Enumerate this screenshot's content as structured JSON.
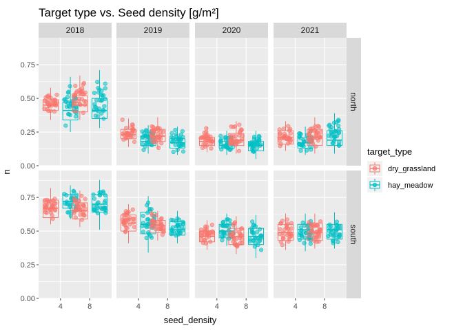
{
  "chart_data": {
    "type": "boxplot-jitter-faceted",
    "title": "Target type vs. Seed density [g/m²]",
    "xlabel": "seed_density",
    "ylabel": "n",
    "x_categories": [
      "4",
      "8"
    ],
    "ylim": [
      0,
      0.95
    ],
    "y_ticks": [
      "0.00",
      "0.25",
      "0.50",
      "0.75"
    ],
    "y_tick_values": [
      0,
      0.25,
      0.5,
      0.75
    ],
    "facet_columns": [
      "2018",
      "2019",
      "2020",
      "2021"
    ],
    "facet_rows": [
      "north",
      "south"
    ],
    "legend": {
      "title": "target_type",
      "position": "right",
      "entries": [
        {
          "name": "dry_grassland",
          "color": "#F8766D"
        },
        {
          "name": "hay_meadow",
          "color": "#00BFC4"
        }
      ]
    },
    "series_colors": {
      "dry_grassland": "#F8766D",
      "hay_meadow": "#00BFC4"
    },
    "boxes": [
      {
        "row": "north",
        "col": "2018",
        "x": "4",
        "series": "dry_grassland",
        "min": 0.34,
        "q1": 0.41,
        "median": 0.45,
        "q3": 0.49,
        "max": 0.58
      },
      {
        "row": "north",
        "col": "2018",
        "x": "4",
        "series": "hay_meadow",
        "min": 0.25,
        "q1": 0.34,
        "median": 0.41,
        "q3": 0.47,
        "max": 0.66
      },
      {
        "row": "north",
        "col": "2018",
        "x": "8",
        "series": "dry_grassland",
        "min": 0.34,
        "q1": 0.4,
        "median": 0.45,
        "q3": 0.52,
        "max": 0.67
      },
      {
        "row": "north",
        "col": "2018",
        "x": "8",
        "series": "hay_meadow",
        "min": 0.28,
        "q1": 0.35,
        "median": 0.41,
        "q3": 0.5,
        "max": 0.71
      },
      {
        "row": "north",
        "col": "2019",
        "x": "4",
        "series": "dry_grassland",
        "min": 0.14,
        "q1": 0.2,
        "median": 0.23,
        "q3": 0.27,
        "max": 0.35
      },
      {
        "row": "north",
        "col": "2019",
        "x": "4",
        "series": "hay_meadow",
        "min": 0.09,
        "q1": 0.15,
        "median": 0.18,
        "q3": 0.22,
        "max": 0.3
      },
      {
        "row": "north",
        "col": "2019",
        "x": "8",
        "series": "dry_grassland",
        "min": 0.12,
        "q1": 0.18,
        "median": 0.22,
        "q3": 0.27,
        "max": 0.36
      },
      {
        "row": "north",
        "col": "2019",
        "x": "8",
        "series": "hay_meadow",
        "min": 0.08,
        "q1": 0.13,
        "median": 0.17,
        "q3": 0.2,
        "max": 0.29
      },
      {
        "row": "north",
        "col": "2020",
        "x": "4",
        "series": "dry_grassland",
        "min": 0.1,
        "q1": 0.15,
        "median": 0.18,
        "q3": 0.21,
        "max": 0.29
      },
      {
        "row": "north",
        "col": "2020",
        "x": "4",
        "series": "hay_meadow",
        "min": 0.08,
        "q1": 0.13,
        "median": 0.15,
        "q3": 0.18,
        "max": 0.26
      },
      {
        "row": "north",
        "col": "2020",
        "x": "8",
        "series": "dry_grassland",
        "min": 0.09,
        "q1": 0.15,
        "median": 0.19,
        "q3": 0.24,
        "max": 0.33
      },
      {
        "row": "north",
        "col": "2020",
        "x": "8",
        "series": "hay_meadow",
        "min": 0.05,
        "q1": 0.11,
        "median": 0.15,
        "q3": 0.18,
        "max": 0.26
      },
      {
        "row": "north",
        "col": "2021",
        "x": "4",
        "series": "dry_grassland",
        "min": 0.11,
        "q1": 0.16,
        "median": 0.21,
        "q3": 0.26,
        "max": 0.33
      },
      {
        "row": "north",
        "col": "2021",
        "x": "4",
        "series": "hay_meadow",
        "min": 0.08,
        "q1": 0.13,
        "median": 0.17,
        "q3": 0.21,
        "max": 0.29
      },
      {
        "row": "north",
        "col": "2021",
        "x": "8",
        "series": "dry_grassland",
        "min": 0.09,
        "q1": 0.15,
        "median": 0.21,
        "q3": 0.27,
        "max": 0.36
      },
      {
        "row": "north",
        "col": "2021",
        "x": "8",
        "series": "hay_meadow",
        "min": 0.09,
        "q1": 0.15,
        "median": 0.19,
        "q3": 0.26,
        "max": 0.39
      },
      {
        "row": "south",
        "col": "2018",
        "x": "4",
        "series": "dry_grassland",
        "min": 0.55,
        "q1": 0.6,
        "median": 0.67,
        "q3": 0.73,
        "max": 0.82
      },
      {
        "row": "south",
        "col": "2018",
        "x": "4",
        "series": "hay_meadow",
        "min": 0.59,
        "q1": 0.67,
        "median": 0.72,
        "q3": 0.77,
        "max": 0.84
      },
      {
        "row": "south",
        "col": "2018",
        "x": "8",
        "series": "dry_grassland",
        "min": 0.53,
        "q1": 0.59,
        "median": 0.65,
        "q3": 0.71,
        "max": 0.8
      },
      {
        "row": "south",
        "col": "2018",
        "x": "8",
        "series": "hay_meadow",
        "min": 0.51,
        "q1": 0.64,
        "median": 0.7,
        "q3": 0.77,
        "max": 0.88
      },
      {
        "row": "south",
        "col": "2019",
        "x": "4",
        "series": "dry_grassland",
        "min": 0.41,
        "q1": 0.5,
        "median": 0.56,
        "q3": 0.62,
        "max": 0.7
      },
      {
        "row": "south",
        "col": "2019",
        "x": "4",
        "series": "hay_meadow",
        "min": 0.34,
        "q1": 0.48,
        "median": 0.55,
        "q3": 0.64,
        "max": 0.76
      },
      {
        "row": "south",
        "col": "2019",
        "x": "8",
        "series": "dry_grassland",
        "min": 0.43,
        "q1": 0.49,
        "median": 0.54,
        "q3": 0.58,
        "max": 0.65
      },
      {
        "row": "south",
        "col": "2019",
        "x": "8",
        "series": "hay_meadow",
        "min": 0.41,
        "q1": 0.47,
        "median": 0.51,
        "q3": 0.57,
        "max": 0.65
      },
      {
        "row": "south",
        "col": "2020",
        "x": "4",
        "series": "dry_grassland",
        "min": 0.36,
        "q1": 0.42,
        "median": 0.46,
        "q3": 0.5,
        "max": 0.58
      },
      {
        "row": "south",
        "col": "2020",
        "x": "4",
        "series": "hay_meadow",
        "min": 0.39,
        "q1": 0.45,
        "median": 0.5,
        "q3": 0.55,
        "max": 0.63
      },
      {
        "row": "south",
        "col": "2020",
        "x": "8",
        "series": "dry_grassland",
        "min": 0.33,
        "q1": 0.4,
        "median": 0.46,
        "q3": 0.52,
        "max": 0.61
      },
      {
        "row": "south",
        "col": "2020",
        "x": "8",
        "series": "hay_meadow",
        "min": 0.3,
        "q1": 0.4,
        "median": 0.46,
        "q3": 0.52,
        "max": 0.62
      },
      {
        "row": "south",
        "col": "2021",
        "x": "4",
        "series": "dry_grassland",
        "min": 0.36,
        "q1": 0.43,
        "median": 0.49,
        "q3": 0.55,
        "max": 0.63
      },
      {
        "row": "south",
        "col": "2021",
        "x": "4",
        "series": "hay_meadow",
        "min": 0.35,
        "q1": 0.44,
        "median": 0.51,
        "q3": 0.55,
        "max": 0.63
      },
      {
        "row": "south",
        "col": "2021",
        "x": "8",
        "series": "dry_grassland",
        "min": 0.37,
        "q1": 0.43,
        "median": 0.49,
        "q3": 0.56,
        "max": 0.63
      },
      {
        "row": "south",
        "col": "2021",
        "x": "8",
        "series": "hay_meadow",
        "min": 0.37,
        "q1": 0.44,
        "median": 0.51,
        "q3": 0.55,
        "max": 0.64
      }
    ]
  }
}
